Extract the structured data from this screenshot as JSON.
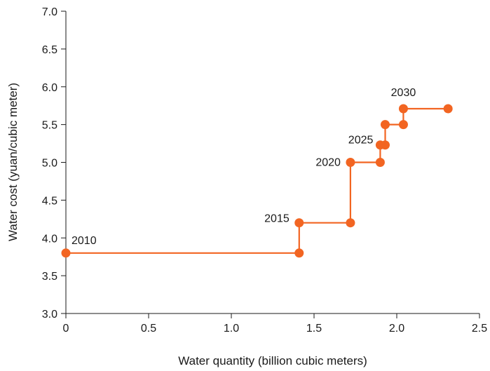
{
  "chart_data": {
    "type": "line",
    "xlabel": "Water quantity (billion cubic meters)",
    "ylabel": "Water cost (yuan/cubic meter)",
    "xlim": [
      0,
      2.5
    ],
    "ylim": [
      3.0,
      7.0
    ],
    "x_ticks": [
      "0",
      "0.5",
      "1.0",
      "1.5",
      "2.0",
      "2.5"
    ],
    "y_ticks": [
      "3.0",
      "3.5",
      "4.0",
      "4.5",
      "5.0",
      "5.5",
      "6.0",
      "6.5",
      "7.0"
    ],
    "grid": false,
    "color": "#f26522",
    "points": [
      {
        "x": 0.0,
        "y": 3.8
      },
      {
        "x": 1.41,
        "y": 3.8
      },
      {
        "x": 1.41,
        "y": 4.2
      },
      {
        "x": 1.72,
        "y": 4.2
      },
      {
        "x": 1.72,
        "y": 5.0
      },
      {
        "x": 1.9,
        "y": 5.0
      },
      {
        "x": 1.9,
        "y": 5.23
      },
      {
        "x": 1.93,
        "y": 5.23
      },
      {
        "x": 1.93,
        "y": 5.5
      },
      {
        "x": 2.04,
        "y": 5.5
      },
      {
        "x": 2.04,
        "y": 5.71
      },
      {
        "x": 2.31,
        "y": 5.71
      }
    ],
    "annotations": [
      {
        "text": "2010",
        "x": 0.0,
        "y": 3.8
      },
      {
        "text": "2015",
        "x": 1.41,
        "y": 4.2
      },
      {
        "text": "2020",
        "x": 1.72,
        "y": 5.0
      },
      {
        "text": "2025",
        "x": 1.9,
        "y": 5.23
      },
      {
        "text": "2030",
        "x": 2.04,
        "y": 5.71
      }
    ]
  }
}
